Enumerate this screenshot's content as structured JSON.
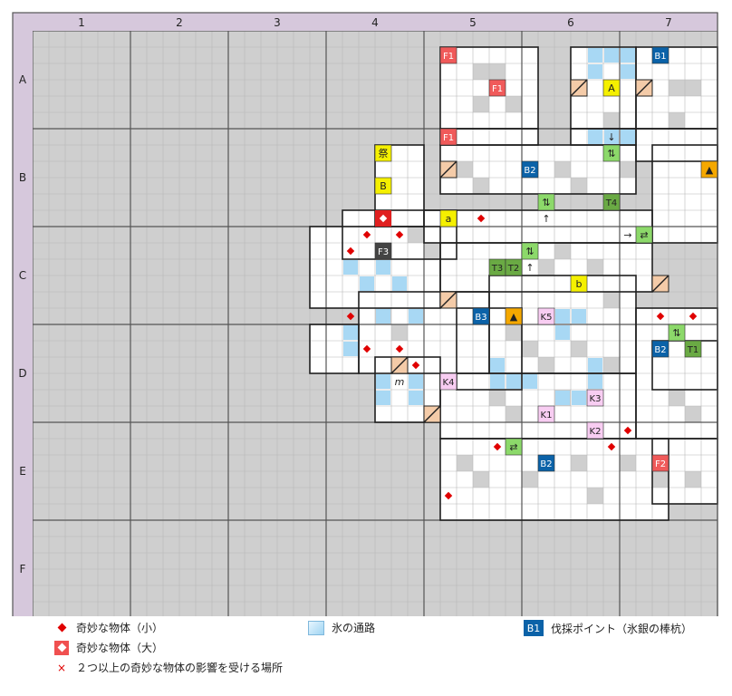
{
  "map": {
    "columns": [
      "1",
      "2",
      "3",
      "4",
      "5",
      "6",
      "7"
    ],
    "rows": [
      "A",
      "B",
      "C",
      "D",
      "E",
      "F"
    ],
    "cells_per_block": 6,
    "colors": {
      "header_bg": "#d6c8dc",
      "outside": "#cfcfcf",
      "floor": "#ffffff",
      "wall": "#202020",
      "grid": "#b8b8b8",
      "ice": "#a8d8f4",
      "fire": "#f05a5a",
      "blue": "#0b62a8",
      "green": "#8cd96a",
      "green_dark": "#6aaa44",
      "yellow": "#f5f000",
      "orange": "#f5a800",
      "pink": "#f8cdf2",
      "dark": "#444444",
      "stairs": "#f4cba8",
      "red": "#e00000"
    }
  },
  "markers": [
    {
      "label": "F1",
      "kind": "fire",
      "c": 25,
      "r": 1
    },
    {
      "label": "F1",
      "kind": "fire",
      "c": 28,
      "r": 3
    },
    {
      "label": "F1",
      "kind": "fire",
      "c": 25,
      "r": 6
    },
    {
      "label": "B1",
      "kind": "blue",
      "c": 38,
      "r": 1
    },
    {
      "label": "A",
      "kind": "yellow",
      "c": 35,
      "r": 3
    },
    {
      "label": "↓",
      "kind": "plain",
      "c": 35,
      "r": 6
    },
    {
      "label": "⇅",
      "kind": "green",
      "c": 35,
      "r": 7
    },
    {
      "label": "▲",
      "kind": "orange",
      "c": 41,
      "r": 8
    },
    {
      "label": "祭",
      "kind": "yellow",
      "c": 21,
      "r": 7
    },
    {
      "label": "B2",
      "kind": "blue",
      "c": 30,
      "r": 8
    },
    {
      "label": "B",
      "kind": "yellow",
      "c": 21,
      "r": 9
    },
    {
      "label": "⇅",
      "kind": "green",
      "c": 31,
      "r": 10
    },
    {
      "label": "T4",
      "kind": "green_dark",
      "c": 35,
      "r": 10
    },
    {
      "label": "a",
      "kind": "yellow",
      "c": 25,
      "r": 11
    },
    {
      "label": "↑",
      "kind": "plain",
      "c": 31,
      "r": 11
    },
    {
      "label": "→",
      "kind": "plain",
      "c": 36,
      "r": 12
    },
    {
      "label": "⇄",
      "kind": "green",
      "c": 37,
      "r": 12
    },
    {
      "label": "F3",
      "kind": "dark",
      "c": 21,
      "r": 13
    },
    {
      "label": "⇅",
      "kind": "green",
      "c": 30,
      "r": 13
    },
    {
      "label": "T3",
      "kind": "green_dark",
      "c": 28,
      "r": 14
    },
    {
      "label": "T2",
      "kind": "green_dark",
      "c": 29,
      "r": 14
    },
    {
      "label": "↑",
      "kind": "plain",
      "c": 30,
      "r": 14
    },
    {
      "label": "b",
      "kind": "yellow",
      "c": 33,
      "r": 15
    },
    {
      "label": "B3",
      "kind": "blue",
      "c": 27,
      "r": 17
    },
    {
      "label": "▲",
      "kind": "orange",
      "c": 29,
      "r": 17
    },
    {
      "label": "K5",
      "kind": "pink",
      "c": 31,
      "r": 17
    },
    {
      "label": "⇅",
      "kind": "green",
      "c": 39,
      "r": 18
    },
    {
      "label": "B2",
      "kind": "blue",
      "c": 38,
      "r": 19
    },
    {
      "label": "T1",
      "kind": "green_dark",
      "c": 40,
      "r": 19
    },
    {
      "label": "m",
      "kind": "plain_italic",
      "c": 22,
      "r": 21
    },
    {
      "label": "K4",
      "kind": "pink",
      "c": 25,
      "r": 21
    },
    {
      "label": "K3",
      "kind": "pink",
      "c": 34,
      "r": 22
    },
    {
      "label": "K1",
      "kind": "pink",
      "c": 31,
      "r": 23
    },
    {
      "label": "K2",
      "kind": "pink",
      "c": 34,
      "r": 24
    },
    {
      "label": "⇄",
      "kind": "green",
      "c": 29,
      "r": 25
    },
    {
      "label": "B2",
      "kind": "blue",
      "c": 31,
      "r": 26
    },
    {
      "label": "F2",
      "kind": "fire",
      "c": 38,
      "r": 26
    }
  ],
  "legend": {
    "small_object": "奇妙な物体（小）",
    "large_object": "奇妙な物体（大）",
    "multi_effect": "２つ以上の奇妙な物体の影響を受ける場所",
    "multi_effect_symbol": "×",
    "ice_path": "氷の通路",
    "felling_point_symbol": "B1",
    "felling_point": "伐採ポイント（氷銀の棒杭）"
  }
}
